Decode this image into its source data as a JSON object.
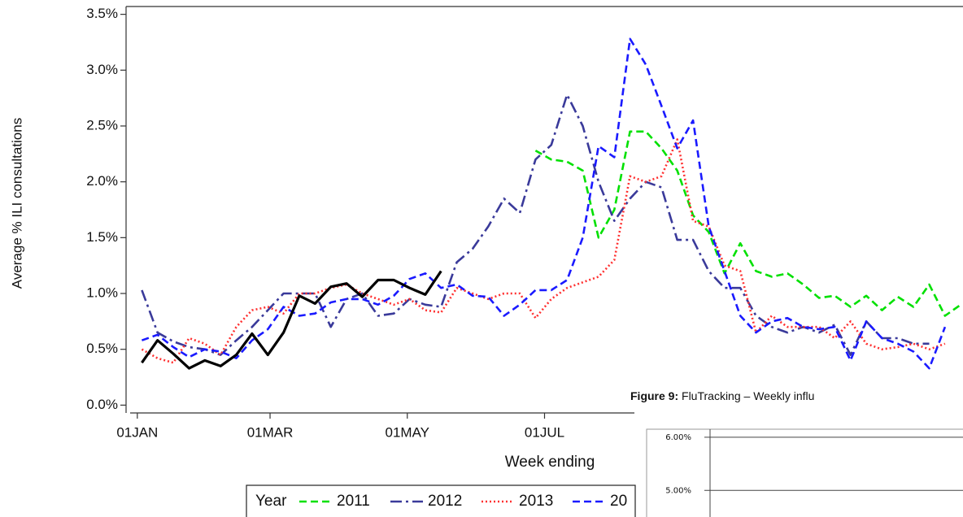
{
  "chart_data": [
    {
      "type": "line",
      "y_label": "Average % ILI consultations",
      "x_label": "Week ending",
      "legend_title": "Year",
      "xlim": [
        -4,
        368
      ],
      "ylim": [
        -0.07,
        3.57
      ],
      "xticks": [
        {
          "value": 1,
          "label": "01JAN"
        },
        {
          "value": 60,
          "label": "01MAR"
        },
        {
          "value": 121,
          "label": "01MAY"
        },
        {
          "value": 182,
          "label": "01JUL"
        }
      ],
      "yticks": [
        {
          "value": 0,
          "label": "0.0%"
        },
        {
          "value": 0.5,
          "label": "0.5%"
        },
        {
          "value": 1,
          "label": "1.0%"
        },
        {
          "value": 1.5,
          "label": "1.5%"
        },
        {
          "value": 2,
          "label": "2.0%"
        },
        {
          "value": 2.5,
          "label": "2.5%"
        },
        {
          "value": 3,
          "label": "3.0%"
        },
        {
          "value": 3.5,
          "label": "3.5%"
        }
      ],
      "x": [
        3,
        10,
        17,
        24,
        31,
        38,
        45,
        52,
        59,
        66,
        73,
        80,
        87,
        94,
        101,
        108,
        115,
        122,
        129,
        136,
        143,
        150,
        157,
        164,
        171,
        178,
        185,
        192,
        199,
        206,
        213,
        220,
        227,
        234,
        241,
        248,
        255,
        262,
        269,
        276,
        283,
        290,
        297,
        304,
        311,
        318,
        325,
        332,
        339,
        346,
        353,
        360,
        367
      ],
      "series": [
        {
          "name": "2011",
          "color": "#00e000",
          "style": "dashed",
          "values": [
            null,
            null,
            null,
            null,
            null,
            null,
            null,
            null,
            null,
            null,
            null,
            null,
            null,
            null,
            null,
            null,
            null,
            null,
            null,
            null,
            null,
            null,
            null,
            null,
            null,
            2.28,
            2.2,
            2.18,
            2.1,
            1.5,
            1.75,
            2.45,
            2.45,
            2.3,
            2.1,
            1.7,
            1.55,
            1.18,
            1.45,
            1.2,
            1.15,
            1.18,
            1.08,
            0.96,
            0.98,
            0.88,
            0.98,
            0.85,
            0.97,
            0.88,
            1.08,
            0.8,
            0.9
          ]
        },
        {
          "name": "2012",
          "color": "#3a3a9a",
          "style": "dashdot",
          "values": [
            1.03,
            0.65,
            0.57,
            0.52,
            0.5,
            0.45,
            0.58,
            0.7,
            0.85,
            1.0,
            1.0,
            1.0,
            0.7,
            0.95,
            1.0,
            0.8,
            0.82,
            0.95,
            0.9,
            0.88,
            1.28,
            1.4,
            1.6,
            1.85,
            1.72,
            2.2,
            2.33,
            2.78,
            2.5,
            2.0,
            1.65,
            1.85,
            2.0,
            1.95,
            1.48,
            1.48,
            1.2,
            1.05,
            1.05,
            0.8,
            0.7,
            0.65,
            0.7,
            0.65,
            0.72,
            0.45,
            0.75,
            0.6,
            0.6,
            0.55,
            0.55,
            null,
            null
          ]
        },
        {
          "name": "2013",
          "color": "#ff3030",
          "style": "dotted",
          "values": [
            0.5,
            0.42,
            0.38,
            0.6,
            0.55,
            0.45,
            0.7,
            0.85,
            0.88,
            0.82,
            1.0,
            1.0,
            1.05,
            1.08,
            1.0,
            0.95,
            0.9,
            0.95,
            0.85,
            0.83,
            1.05,
            1.0,
            0.95,
            1.0,
            1.0,
            0.78,
            0.95,
            1.05,
            1.1,
            1.15,
            1.3,
            2.05,
            2.0,
            2.05,
            2.38,
            1.65,
            1.6,
            1.25,
            1.2,
            0.65,
            0.8,
            0.7,
            0.7,
            0.7,
            0.6,
            0.75,
            0.55,
            0.5,
            0.52,
            0.55,
            0.5,
            0.55,
            null
          ]
        },
        {
          "name": "20",
          "color": "#1a1aff",
          "style": "dashed",
          "values": [
            0.58,
            0.63,
            0.52,
            0.43,
            0.5,
            0.48,
            0.42,
            0.58,
            0.68,
            0.88,
            0.8,
            0.82,
            0.92,
            0.95,
            0.95,
            0.9,
            0.98,
            1.13,
            1.18,
            1.05,
            1.08,
            0.98,
            0.97,
            0.8,
            0.9,
            1.03,
            1.03,
            1.12,
            1.5,
            2.32,
            2.22,
            3.28,
            3.05,
            2.68,
            2.3,
            2.55,
            1.6,
            1.2,
            0.8,
            0.65,
            0.75,
            0.78,
            0.7,
            0.68,
            0.7,
            0.4,
            0.75,
            0.6,
            0.55,
            0.48,
            0.33,
            0.7,
            null
          ]
        },
        {
          "color": "#000000",
          "style": "solid",
          "values": [
            0.38,
            0.58,
            0.46,
            0.33,
            0.4,
            0.35,
            0.45,
            0.64,
            0.45,
            0.65,
            0.98,
            0.91,
            1.06,
            1.09,
            0.97,
            1.12,
            1.12,
            1.05,
            0.99,
            1.2,
            null,
            null,
            null,
            null,
            null,
            null,
            null,
            null,
            null,
            null,
            null,
            null,
            null,
            null,
            null,
            null,
            null,
            null,
            null,
            null,
            null,
            null,
            null,
            null,
            null,
            null,
            null,
            null,
            null,
            null,
            null,
            null,
            null
          ]
        }
      ]
    },
    {
      "type": "line",
      "figure_label": "Figure 9:",
      "title": "FluTracking – Weekly influ",
      "ylim": [
        4.5,
        6.15
      ],
      "yticks": [
        {
          "value": 5,
          "label": "5.00%"
        },
        {
          "value": 6,
          "label": "6.00%"
        }
      ],
      "grid": true
    }
  ]
}
